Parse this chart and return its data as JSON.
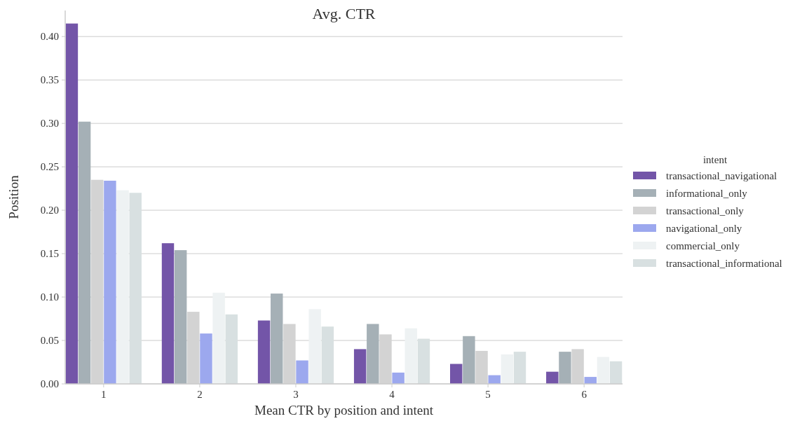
{
  "chart_data": {
    "type": "bar",
    "title": "Avg. CTR",
    "xlabel": "Mean CTR by position and intent",
    "ylabel": "Position",
    "legend_title": "intent",
    "categories": [
      "1",
      "2",
      "3",
      "4",
      "5",
      "6"
    ],
    "series": [
      {
        "name": "transactional_navigational",
        "color": "#7355a8",
        "values": [
          0.415,
          0.162,
          0.073,
          0.04,
          0.023,
          0.014
        ]
      },
      {
        "name": "informational_only",
        "color": "#a5b0b6",
        "values": [
          0.302,
          0.154,
          0.104,
          0.069,
          0.055,
          0.037
        ]
      },
      {
        "name": "transactional_only",
        "color": "#d3d3d3",
        "values": [
          0.235,
          0.083,
          0.069,
          0.057,
          0.038,
          0.04
        ]
      },
      {
        "name": "navigational_only",
        "color": "#9ca8ee",
        "values": [
          0.234,
          0.058,
          0.027,
          0.013,
          0.01,
          0.008
        ]
      },
      {
        "name": "commercial_only",
        "color": "#eef2f3",
        "values": [
          0.223,
          0.105,
          0.086,
          0.064,
          0.034,
          0.031
        ]
      },
      {
        "name": "transactional_informational",
        "color": "#d8e0e1",
        "values": [
          0.22,
          0.08,
          0.066,
          0.052,
          0.037,
          0.026
        ]
      }
    ],
    "ylim": [
      0,
      0.43
    ],
    "yticks": [
      {
        "value": 0,
        "label": "0.00"
      },
      {
        "value": 0.05,
        "label": "0.05"
      },
      {
        "value": 0.1,
        "label": "0.10"
      },
      {
        "value": 0.15,
        "label": "0.15"
      },
      {
        "value": 0.2,
        "label": "0.20"
      },
      {
        "value": 0.25,
        "label": "0.25"
      },
      {
        "value": 0.3,
        "label": "0.30"
      },
      {
        "value": 0.35,
        "label": "0.35"
      },
      {
        "value": 0.4,
        "label": "0.40"
      }
    ],
    "grid": "y",
    "legend": "right"
  }
}
